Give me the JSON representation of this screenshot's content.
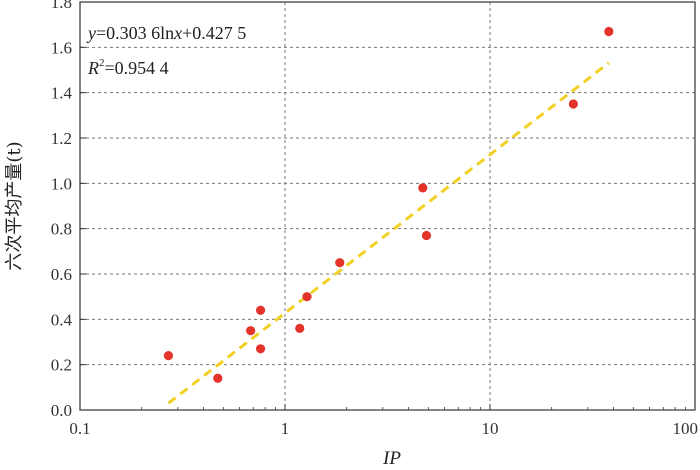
{
  "chart_data": {
    "type": "scatter",
    "xscale": "log",
    "xlim": [
      0.1,
      100
    ],
    "ylim": [
      0,
      1.8
    ],
    "xticks": [
      0.1,
      1,
      10,
      100
    ],
    "xtick_labels": [
      "0.1",
      "1",
      "10",
      "100"
    ],
    "yticks": [
      0,
      0.2,
      0.4,
      0.6,
      0.8,
      1.0,
      1.2,
      1.4,
      1.6,
      1.8
    ],
    "ytick_labels": [
      "0.0",
      "0.2",
      "0.4",
      "0.6",
      "0.8",
      "1.0",
      "1.2",
      "1.4",
      "1.6",
      "1.8"
    ],
    "xlabel": "IP",
    "ylabel": "六次平均产量(t)",
    "grid": true,
    "series": [
      {
        "color": "#e3332a",
        "points": [
          {
            "x": 0.27,
            "y": 0.24
          },
          {
            "x": 0.47,
            "y": 0.14
          },
          {
            "x": 0.68,
            "y": 0.35
          },
          {
            "x": 0.76,
            "y": 0.44
          },
          {
            "x": 0.76,
            "y": 0.27
          },
          {
            "x": 1.18,
            "y": 0.36
          },
          {
            "x": 1.28,
            "y": 0.5
          },
          {
            "x": 1.85,
            "y": 0.65
          },
          {
            "x": 4.7,
            "y": 0.98
          },
          {
            "x": 4.9,
            "y": 0.77
          },
          {
            "x": 25.5,
            "y": 1.35
          },
          {
            "x": 38,
            "y": 1.67
          }
        ]
      }
    ],
    "trendline": {
      "type": "log",
      "a": 0.3036,
      "b": 0.4275,
      "x_range": [
        0.27,
        38
      ],
      "color": "#f2d024",
      "style": "dashed"
    },
    "annotations": {
      "equation_y": "y",
      "equation_rest": "=0.303 6ln",
      "equation_x": "x",
      "equation_tail": "+0.427 5",
      "r2_r": "R",
      "r2_sup": "2",
      "r2_value": "=0.954 4"
    }
  }
}
